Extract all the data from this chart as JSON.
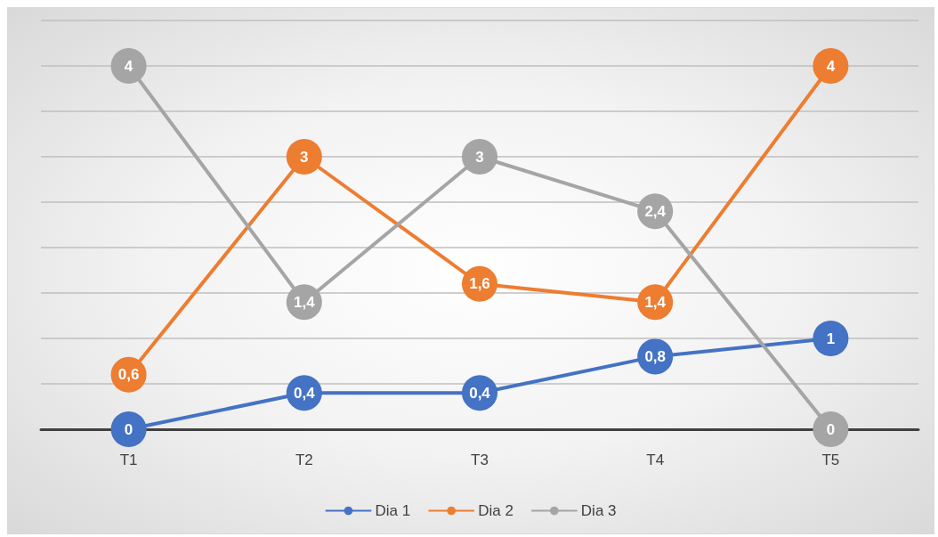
{
  "chart_data": {
    "type": "line",
    "categories": [
      "T1",
      "T2",
      "T3",
      "T4",
      "T5"
    ],
    "series": [
      {
        "name": "Dia 1",
        "color": "#4472c4",
        "values": [
          0,
          0.4,
          0.4,
          0.8,
          1
        ],
        "value_labels": [
          "0",
          "0,4",
          "0,4",
          "0,8",
          "1"
        ]
      },
      {
        "name": "Dia 2",
        "color": "#ed7d31",
        "values": [
          0.6,
          3,
          1.6,
          1.4,
          4
        ],
        "value_labels": [
          "0,6",
          "3",
          "1,6",
          "1,4",
          "4"
        ]
      },
      {
        "name": "Dia 3",
        "color": "#a5a5a5",
        "values": [
          4,
          1.4,
          3,
          2.4,
          0
        ],
        "value_labels": [
          "4",
          "1,4",
          "3",
          "2,4",
          "0"
        ]
      }
    ],
    "ylim": [
      0,
      4.5
    ],
    "yticks": [
      {
        "value": 0,
        "label": null
      },
      {
        "value": 0.5,
        "label": null
      },
      {
        "value": 1,
        "label": null
      },
      {
        "value": 1.5,
        "label": null
      },
      {
        "value": 2,
        "label": null
      },
      {
        "value": 2.5,
        "label": null
      },
      {
        "value": 3,
        "label": null
      },
      {
        "value": 3.5,
        "label": null
      },
      {
        "value": 4,
        "label": null
      },
      {
        "value": 4.5,
        "label": null
      }
    ],
    "tick_labels": "x",
    "grid": "y",
    "legend": "bottom",
    "marker": "circle",
    "line_style": "solid"
  }
}
